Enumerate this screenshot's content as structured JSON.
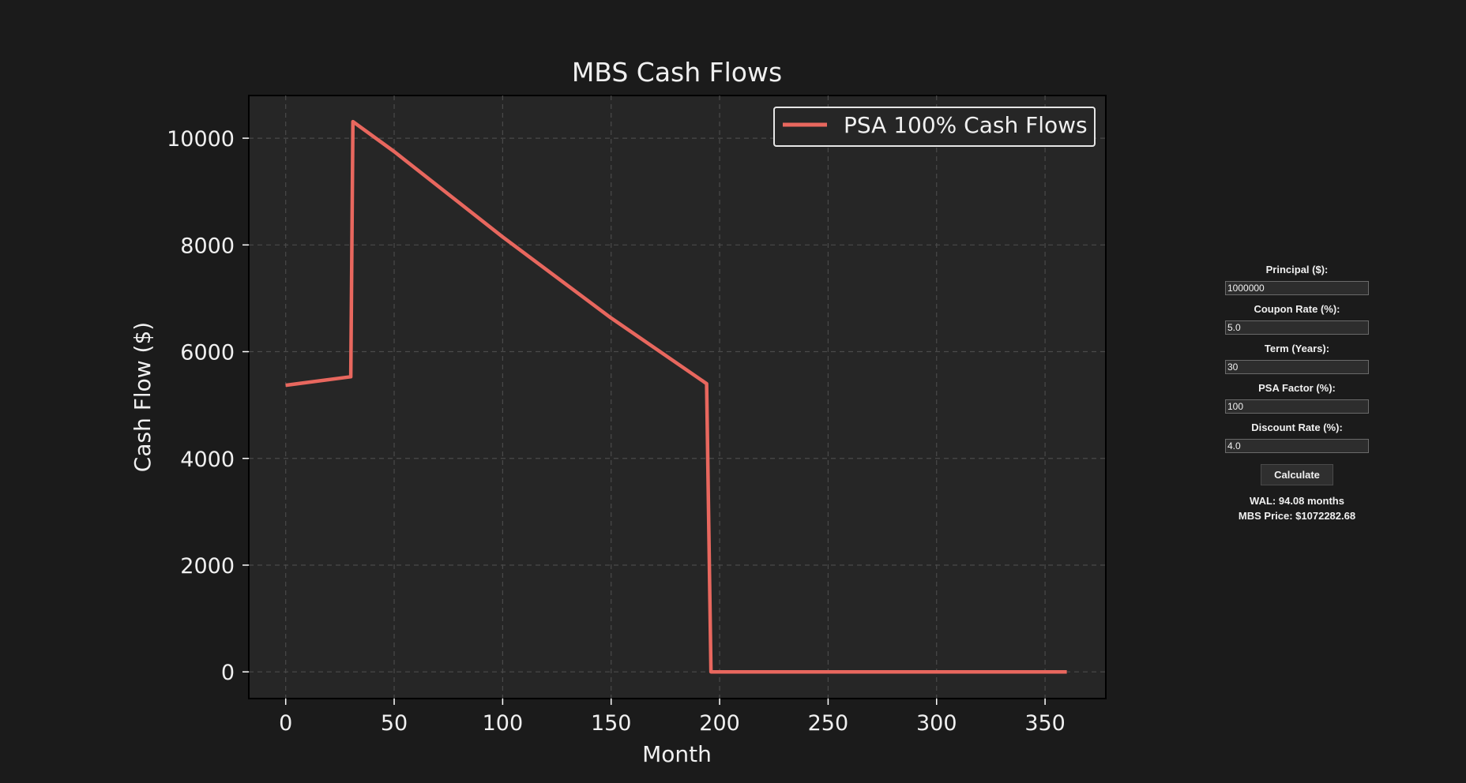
{
  "chart_data": {
    "type": "line",
    "title": "MBS Cash Flows",
    "xlabel": "Month",
    "ylabel": "Cash Flow ($)",
    "xlim": [
      -17,
      378
    ],
    "ylim": [
      -500,
      10800
    ],
    "xticks": [
      0,
      50,
      100,
      150,
      200,
      250,
      300,
      350
    ],
    "yticks": [
      0,
      2000,
      4000,
      6000,
      8000,
      10000
    ],
    "grid": true,
    "legend": "top-right",
    "series": [
      {
        "name": "PSA 100% Cash Flows",
        "color": "#e8675e",
        "x": [
          0,
          30,
          31,
          50,
          100,
          150,
          194,
          196,
          250,
          300,
          360
        ],
        "y": [
          5370,
          5530,
          10310,
          9750,
          8150,
          6630,
          5400,
          0,
          0,
          0,
          0
        ]
      }
    ]
  },
  "controls": {
    "principal_label": "Principal ($):",
    "principal_value": "1000000",
    "coupon_label": "Coupon Rate (%):",
    "coupon_value": "5.0",
    "term_label": "Term (Years):",
    "term_value": "30",
    "psa_label": "PSA Factor (%):",
    "psa_value": "100",
    "discount_label": "Discount Rate (%):",
    "discount_value": "4.0",
    "calculate_label": "Calculate",
    "wal_text": "WAL: 94.08 months",
    "price_text": "MBS Price: $1072282.68"
  }
}
